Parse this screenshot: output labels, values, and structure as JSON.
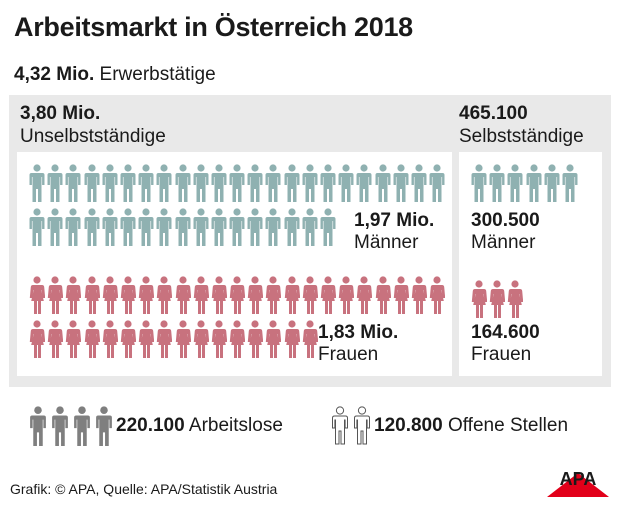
{
  "title": "Arbeitsmarkt in Österreich 2018",
  "total": {
    "value": "4,32 Mio.",
    "label": "Erwerbstätige"
  },
  "employees": {
    "value": "3,80 Mio.",
    "label": "Unselbstständige",
    "men": {
      "value": "1,97 Mio.",
      "label": "Männer",
      "icons_row1": 23,
      "icons_row2": 17
    },
    "women": {
      "value": "1,83 Mio.",
      "label": "Frauen",
      "icons_row1": 23,
      "icons_row2": 16
    }
  },
  "self_employed": {
    "value": "465.100",
    "label": "Selbstständige",
    "men": {
      "value": "300.500",
      "label": "Männer",
      "icons": 6
    },
    "women": {
      "value": "164.600",
      "label": "Frauen",
      "icons": 3
    }
  },
  "unemployed": {
    "value": "220.100",
    "label": "Arbeitslose",
    "icons": 4
  },
  "open_positions": {
    "value": "120.800",
    "label": "Offene Stellen",
    "icons": 2
  },
  "source": "Grafik: © APA, Quelle: APA/Statistik Austria",
  "logo_text": "APA",
  "colors": {
    "men": "#8fb1b1",
    "women": "#c8727e",
    "unemployed": "#7f7f7f",
    "outline": "#555555",
    "panel": "#e9e9e9",
    "logo_red": "#e2001a"
  }
}
